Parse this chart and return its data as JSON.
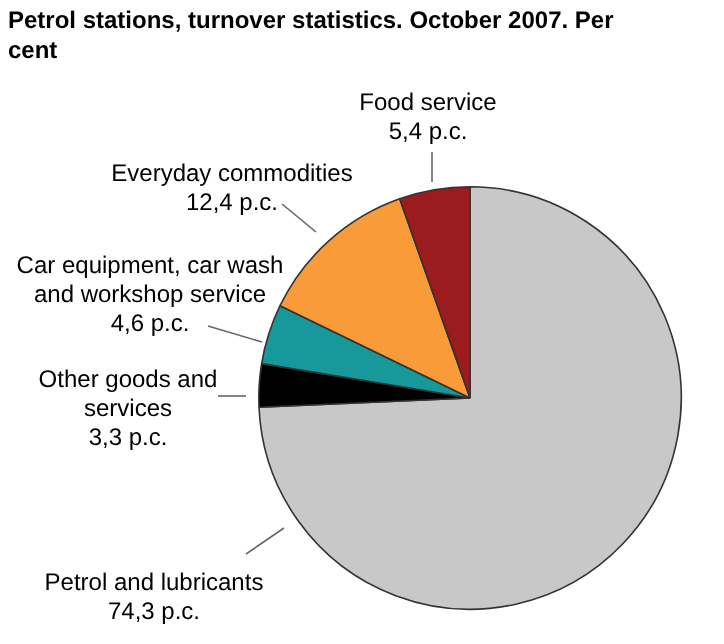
{
  "chart_data": {
    "type": "pie",
    "title": "Petrol stations, turnover statistics. October 2007. Per cent",
    "categories": [
      "Petrol and lubricants",
      "Other goods and services",
      "Car equipment, car wash and workshop service",
      "Everyday commodities",
      "Food service"
    ],
    "values": [
      74.3,
      3.3,
      4.6,
      12.4,
      5.4
    ],
    "value_labels": [
      "74,3 p.c.",
      "3,3 p.c.",
      "4,6 p.c.",
      "12,4 p.c.",
      "5,4 p.c."
    ],
    "colors": [
      "#c8c8c8",
      "#000000",
      "#17999b",
      "#f99b38",
      "#9b1b1e"
    ],
    "legend": false
  }
}
